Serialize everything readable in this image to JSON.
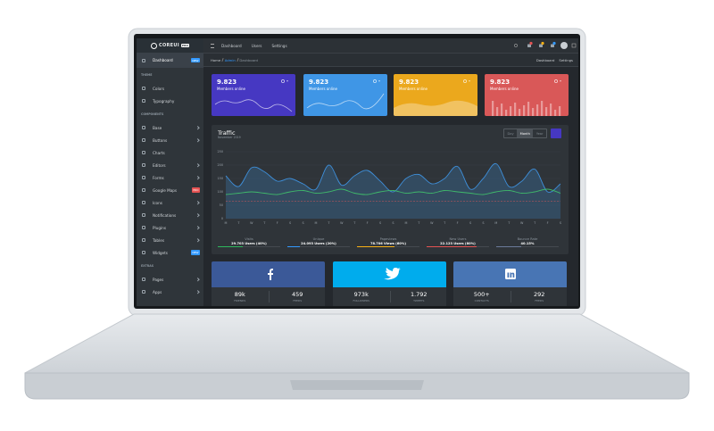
{
  "brand": {
    "name": "COREUI",
    "badge": "PRO"
  },
  "topnav": [
    "Dashboard",
    "Users",
    "Settings"
  ],
  "breadcrumb": [
    "Home",
    "Admin",
    "Dashboard"
  ],
  "subnav": [
    "Dashboard",
    "Settings"
  ],
  "sidebar": [
    {
      "label": "Dashboard",
      "badge": "NEW",
      "active": true
    },
    {
      "heading": "THEME"
    },
    {
      "label": "Colors"
    },
    {
      "label": "Typography"
    },
    {
      "heading": "COMPONENTS"
    },
    {
      "label": "Base",
      "more": true
    },
    {
      "label": "Buttons",
      "more": true
    },
    {
      "label": "Charts"
    },
    {
      "label": "Editors",
      "more": true
    },
    {
      "label": "Forms",
      "more": true
    },
    {
      "label": "Google Maps",
      "badge": "PRO"
    },
    {
      "label": "Icons",
      "more": true
    },
    {
      "label": "Notifications",
      "more": true
    },
    {
      "label": "Plugins",
      "more": true
    },
    {
      "label": "Tables",
      "more": true
    },
    {
      "label": "Widgets",
      "badge": "NEW"
    },
    {
      "heading": "EXTRAS"
    },
    {
      "label": "Pages",
      "more": true
    },
    {
      "label": "Apps",
      "more": true
    }
  ],
  "widgets": [
    {
      "value": "9.823",
      "label": "Members online",
      "color": "#4638c2"
    },
    {
      "value": "9.823",
      "label": "Members online",
      "color": "#3f96e6"
    },
    {
      "value": "9.823",
      "label": "Members online",
      "color": "#eba81d"
    },
    {
      "value": "9.823",
      "label": "Members online",
      "color": "#d95858"
    }
  ],
  "traffic": {
    "title": "Traffic",
    "subtitle": "November 2019",
    "periods": [
      "Day",
      "Month",
      "Year"
    ],
    "chart": {
      "type": "line",
      "categories": [
        "M",
        "T",
        "W",
        "T",
        "F",
        "S",
        "S",
        "M",
        "T",
        "W",
        "T",
        "F",
        "S",
        "S",
        "M",
        "T",
        "W",
        "T",
        "F",
        "S",
        "S",
        "M",
        "T",
        "W",
        "T",
        "F",
        "S"
      ],
      "ylim": [
        0,
        250
      ],
      "yticks": [
        0,
        50,
        100,
        150,
        200,
        250
      ],
      "series": [
        {
          "color": "#3e8ed8",
          "fill": true,
          "values": [
            160,
            120,
            190,
            175,
            140,
            150,
            130,
            110,
            200,
            125,
            160,
            180,
            140,
            100,
            150,
            165,
            130,
            150,
            195,
            110,
            150,
            205,
            120,
            140,
            185,
            100,
            130
          ]
        },
        {
          "color": "#3fb86a",
          "values": [
            90,
            95,
            100,
            95,
            90,
            100,
            105,
            95,
            100,
            110,
            95,
            90,
            100,
            105,
            95,
            100,
            95,
            105,
            100,
            95,
            90,
            100,
            105,
            95,
            100,
            110,
            95
          ]
        },
        {
          "color": "#d95858",
          "dashed": true,
          "values": [
            65,
            65,
            65,
            65,
            65,
            65,
            65,
            65,
            65,
            65,
            65,
            65,
            65,
            65,
            65,
            65,
            65,
            65,
            65,
            65,
            65,
            65,
            65,
            65,
            65,
            65,
            65
          ]
        }
      ]
    }
  },
  "stats": [
    {
      "label": "Visits",
      "value": "29.703 Users (40%)",
      "progress": 40,
      "color": "#2eb85c"
    },
    {
      "label": "Unique",
      "value": "24.093 Users (20%)",
      "progress": 20,
      "color": "#39f"
    },
    {
      "label": "Pageviews",
      "value": "78.706 Views (60%)",
      "progress": 60,
      "color": "#f9b115"
    },
    {
      "label": "New Users",
      "value": "22.123 Users (80%)",
      "progress": 80,
      "color": "#e55353"
    },
    {
      "label": "Bounce Rate",
      "value": "40.15%",
      "progress": 40.15,
      "color": "#6b7a99"
    }
  ],
  "social": [
    {
      "color": "#3b5998",
      "stats": [
        {
          "value": "89k",
          "label": "FRIENDS"
        },
        {
          "value": "459",
          "label": "FEEDS"
        }
      ]
    },
    {
      "color": "#00aced",
      "stats": [
        {
          "value": "973k",
          "label": "FOLLOWERS"
        },
        {
          "value": "1.792",
          "label": "TWEETS"
        }
      ]
    },
    {
      "color": "#4875b4",
      "stats": [
        {
          "value": "500+",
          "label": "CONTACTS"
        },
        {
          "value": "292",
          "label": "FEEDS"
        }
      ]
    }
  ]
}
